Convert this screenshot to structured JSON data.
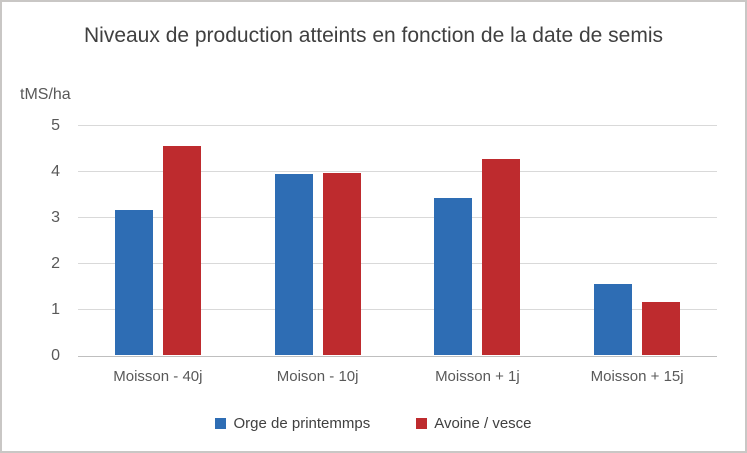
{
  "chart_data": {
    "type": "bar",
    "title": "Niveaux de production atteints en fonction de la date de semis",
    "y_axis_label": "tMS/ha",
    "categories": [
      "Moisson - 40j",
      "Moison - 10j",
      "Moisson + 1j",
      "Moisson + 15j"
    ],
    "series": [
      {
        "name": "Orge de printemmps",
        "color": "#2E6DB4",
        "values": [
          3.15,
          3.93,
          3.42,
          1.55
        ]
      },
      {
        "name": "Avoine / vesce",
        "color": "#BE2B2E",
        "values": [
          4.55,
          3.95,
          4.25,
          1.15
        ]
      }
    ],
    "y_ticks": [
      0,
      1,
      2,
      3,
      4,
      5
    ],
    "ylim": [
      0,
      5
    ],
    "grid": true,
    "legend_position": "bottom"
  },
  "colors": {
    "title_text": "#404040",
    "axis_text": "#595959",
    "gridline": "#d9d9d9",
    "axis_line": "#bfbfbf",
    "frame_border": "#c9c7c5",
    "background": "#ffffff"
  }
}
